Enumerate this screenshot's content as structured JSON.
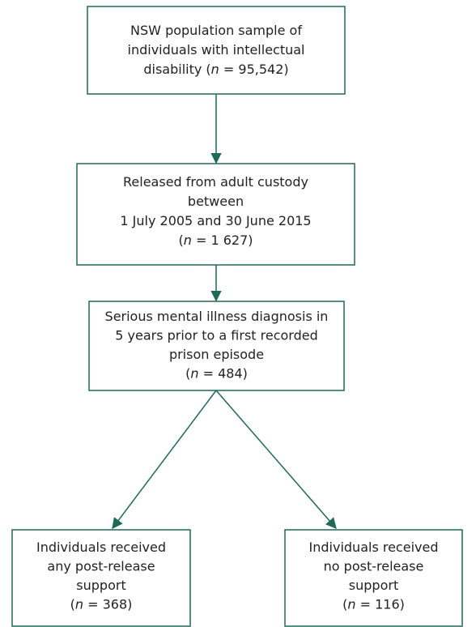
{
  "nodes": [
    {
      "lines": [
        [
          {
            "text": "NSW population sample of"
          }
        ],
        [
          {
            "text": "individuals with intellectual"
          }
        ],
        [
          {
            "text": "disability ("
          },
          {
            "text": "n",
            "italic": true
          },
          {
            "text": " = 95,542)"
          }
        ]
      ]
    },
    {
      "lines": [
        [
          {
            "text": "Released from adult custody"
          }
        ],
        [
          {
            "text": "between"
          }
        ],
        [
          {
            "text": "1 July 2005 and 30 June 2015"
          }
        ],
        [
          {
            "text": "("
          },
          {
            "text": "n",
            "italic": true
          },
          {
            "text": " = 1 627)"
          }
        ]
      ]
    },
    {
      "lines": [
        [
          {
            "text": "Serious mental illness diagnosis in"
          }
        ],
        [
          {
            "text": "5 years prior to a first recorded"
          }
        ],
        [
          {
            "text": "prison episode"
          }
        ],
        [
          {
            "text": "("
          },
          {
            "text": "n",
            "italic": true
          },
          {
            "text": " = 484)"
          }
        ]
      ]
    },
    {
      "lines": [
        [
          {
            "text": "Individuals received"
          }
        ],
        [
          {
            "text": "any post-release"
          }
        ],
        [
          {
            "text": "support"
          }
        ],
        [
          {
            "text": "("
          },
          {
            "text": "n",
            "italic": true
          },
          {
            "text": " = 368)"
          }
        ]
      ]
    },
    {
      "lines": [
        [
          {
            "text": "Individuals received"
          }
        ],
        [
          {
            "text": "no post-release"
          }
        ],
        [
          {
            "text": "support"
          }
        ],
        [
          {
            "text": "("
          },
          {
            "text": "n",
            "italic": true
          },
          {
            "text": " = 116)"
          }
        ]
      ]
    }
  ]
}
